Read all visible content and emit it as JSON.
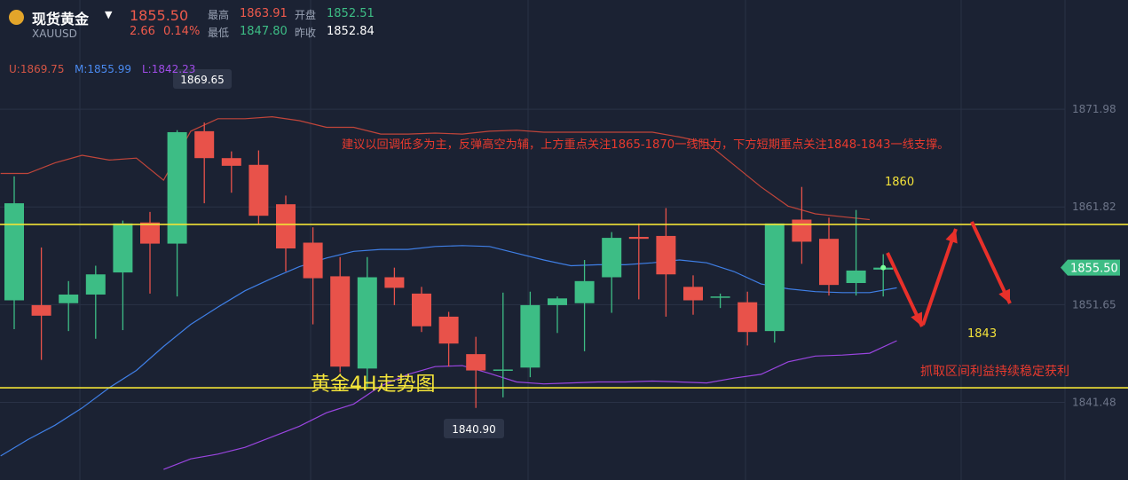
{
  "header": {
    "title": "现货黄金",
    "symbol": "XAUUSD",
    "price": "1855.50",
    "change": "2.66",
    "change_pct": "0.14%",
    "high_label": "最高",
    "high": "1863.91",
    "low_label": "最低",
    "low": "1847.80",
    "open_label": "开盘",
    "open": "1852.51",
    "prev_close_label": "昨收",
    "prev_close": "1852.84"
  },
  "indicator": {
    "upper": "U:1869.75",
    "middle": "M:1855.99",
    "lower": "L:1842.23"
  },
  "annotations": {
    "advice": "建议以回调低多为主，反弹高空为辅，上方重点关注1865-1870一线阻力，下方短期重点关注1848-1843一线支撑。",
    "chart_title": "黄金4H走势图",
    "profit_note": "抓取区间利益持续稳定获利",
    "level_high_label": "1860",
    "level_low_label": "1843",
    "max_label": "1869.65",
    "min_label": "1840.90",
    "current_price_tag": "1855.50"
  },
  "colors": {
    "background": "#1b2233",
    "up": "#3dbd85",
    "down": "#e8524a",
    "upper_band": "#c0453a",
    "middle_band": "#3f7fe6",
    "lower_band": "#9a45e0",
    "level_line": "#f1e336",
    "advice_text": "#e83a2e",
    "arrow": "#e8302a"
  },
  "chart_data": {
    "type": "candlestick",
    "symbol": "XAUUSD",
    "y_ticks": [
      1871.98,
      1861.82,
      1851.65,
      1841.48
    ],
    "ylim": [
      1837.3,
      1875.9
    ],
    "grid": true,
    "horizontal_levels": [
      1860,
      1843
    ],
    "candles": [
      {
        "o": 1852.1,
        "h": 1865.0,
        "l": 1849.1,
        "c": 1862.2
      },
      {
        "o": 1851.6,
        "h": 1857.6,
        "l": 1845.9,
        "c": 1850.5
      },
      {
        "o": 1851.8,
        "h": 1854.1,
        "l": 1848.9,
        "c": 1852.7
      },
      {
        "o": 1852.7,
        "h": 1855.7,
        "l": 1848.1,
        "c": 1854.8
      },
      {
        "o": 1855.0,
        "h": 1860.4,
        "l": 1849.0,
        "c": 1860.1
      },
      {
        "o": 1860.2,
        "h": 1861.3,
        "l": 1852.8,
        "c": 1858.0
      },
      {
        "o": 1858.0,
        "h": 1869.8,
        "l": 1852.5,
        "c": 1869.6
      },
      {
        "o": 1869.7,
        "h": 1870.6,
        "l": 1862.2,
        "c": 1866.9
      },
      {
        "o": 1866.9,
        "h": 1867.6,
        "l": 1863.3,
        "c": 1866.1
      },
      {
        "o": 1866.2,
        "h": 1867.7,
        "l": 1860.0,
        "c": 1860.9
      },
      {
        "o": 1862.1,
        "h": 1863.0,
        "l": 1855.1,
        "c": 1857.5
      },
      {
        "o": 1858.1,
        "h": 1859.7,
        "l": 1849.6,
        "c": 1854.4
      },
      {
        "o": 1854.6,
        "h": 1856.6,
        "l": 1844.6,
        "c": 1845.2
      },
      {
        "o": 1845.0,
        "h": 1856.6,
        "l": 1842.9,
        "c": 1854.5
      },
      {
        "o": 1854.5,
        "h": 1855.5,
        "l": 1851.6,
        "c": 1853.4
      },
      {
        "o": 1852.8,
        "h": 1853.5,
        "l": 1848.8,
        "c": 1849.4
      },
      {
        "o": 1850.4,
        "h": 1850.9,
        "l": 1845.2,
        "c": 1847.6
      },
      {
        "o": 1846.5,
        "h": 1848.3,
        "l": 1840.9,
        "c": 1844.8
      },
      {
        "o": 1844.8,
        "h": 1852.9,
        "l": 1842.0,
        "c": 1844.9
      },
      {
        "o": 1845.1,
        "h": 1853.0,
        "l": 1844.1,
        "c": 1851.6
      },
      {
        "o": 1851.6,
        "h": 1852.5,
        "l": 1848.7,
        "c": 1852.3
      },
      {
        "o": 1851.8,
        "h": 1856.3,
        "l": 1846.8,
        "c": 1854.1
      },
      {
        "o": 1854.5,
        "h": 1859.2,
        "l": 1850.8,
        "c": 1858.6
      },
      {
        "o": 1858.7,
        "h": 1860.1,
        "l": 1852.2,
        "c": 1858.5
      },
      {
        "o": 1858.8,
        "h": 1861.7,
        "l": 1850.4,
        "c": 1854.8
      },
      {
        "o": 1853.5,
        "h": 1854.7,
        "l": 1850.6,
        "c": 1852.1
      },
      {
        "o": 1852.4,
        "h": 1852.8,
        "l": 1851.3,
        "c": 1852.5
      },
      {
        "o": 1851.9,
        "h": 1853.0,
        "l": 1847.4,
        "c": 1848.8
      },
      {
        "o": 1848.9,
        "h": 1860.1,
        "l": 1847.7,
        "c": 1860.1
      },
      {
        "o": 1860.5,
        "h": 1863.9,
        "l": 1855.9,
        "c": 1858.2
      },
      {
        "o": 1858.5,
        "h": 1860.7,
        "l": 1852.6,
        "c": 1853.7
      },
      {
        "o": 1853.9,
        "h": 1861.5,
        "l": 1852.6,
        "c": 1855.2
      },
      {
        "o": 1855.3,
        "h": 1856.9,
        "l": 1852.5,
        "c": 1855.5
      }
    ],
    "bands": {
      "upper": [
        [
          -0.5,
          1865.3
        ],
        [
          0.5,
          1865.3
        ],
        [
          1.5,
          1866.4
        ],
        [
          2.5,
          1867.2
        ],
        [
          3.5,
          1866.7
        ],
        [
          4.5,
          1866.9
        ],
        [
          5.5,
          1864.6
        ],
        [
          6.5,
          1869.7
        ],
        [
          7.5,
          1871.0
        ],
        [
          8.5,
          1871.0
        ],
        [
          9.5,
          1871.2
        ],
        [
          10.5,
          1870.8
        ],
        [
          11.5,
          1870.1
        ],
        [
          12.5,
          1870.1
        ],
        [
          13.5,
          1869.4
        ],
        [
          14.5,
          1869.4
        ],
        [
          15.5,
          1869.5
        ],
        [
          16.5,
          1869.4
        ],
        [
          17.5,
          1869.7
        ],
        [
          18.5,
          1869.8
        ],
        [
          19.5,
          1869.6
        ],
        [
          20.5,
          1869.6
        ],
        [
          21.5,
          1869.6
        ],
        [
          22.5,
          1869.6
        ],
        [
          23.5,
          1869.6
        ],
        [
          24.5,
          1869.1
        ],
        [
          25.5,
          1868.5
        ],
        [
          26.5,
          1866.2
        ],
        [
          27.5,
          1863.9
        ],
        [
          28.5,
          1861.9
        ],
        [
          29.5,
          1861.1
        ],
        [
          30.5,
          1860.8
        ],
        [
          31.5,
          1860.5
        ]
      ],
      "middle": [
        [
          -0.5,
          1835.9
        ],
        [
          0.5,
          1837.6
        ],
        [
          1.5,
          1839.1
        ],
        [
          2.5,
          1840.9
        ],
        [
          3.5,
          1843.0
        ],
        [
          4.5,
          1844.8
        ],
        [
          5.5,
          1847.3
        ],
        [
          6.5,
          1849.6
        ],
        [
          7.5,
          1851.4
        ],
        [
          8.5,
          1853.1
        ],
        [
          9.5,
          1854.4
        ],
        [
          10.5,
          1855.6
        ],
        [
          11.5,
          1856.5
        ],
        [
          12.5,
          1857.2
        ],
        [
          13.5,
          1857.4
        ],
        [
          14.5,
          1857.4
        ],
        [
          15.5,
          1857.7
        ],
        [
          16.5,
          1857.8
        ],
        [
          17.5,
          1857.7
        ],
        [
          18.5,
          1857.0
        ],
        [
          19.5,
          1856.3
        ],
        [
          20.5,
          1855.7
        ],
        [
          21.5,
          1855.8
        ],
        [
          22.5,
          1855.8
        ],
        [
          23.5,
          1856.0
        ],
        [
          24.5,
          1856.3
        ],
        [
          25.5,
          1856.0
        ],
        [
          26.5,
          1855.1
        ],
        [
          27.5,
          1853.8
        ],
        [
          28.5,
          1853.3
        ],
        [
          29.5,
          1853.0
        ],
        [
          30.5,
          1852.9
        ],
        [
          31.5,
          1852.9
        ],
        [
          32.5,
          1853.4
        ]
      ],
      "lower": [
        [
          5.5,
          1834.5
        ],
        [
          6.5,
          1835.6
        ],
        [
          7.5,
          1836.1
        ],
        [
          8.5,
          1836.8
        ],
        [
          9.5,
          1837.9
        ],
        [
          10.5,
          1839.0
        ],
        [
          11.5,
          1840.4
        ],
        [
          12.5,
          1841.3
        ],
        [
          13.5,
          1843.2
        ],
        [
          14.5,
          1844.4
        ],
        [
          15.5,
          1845.2
        ],
        [
          16.5,
          1845.3
        ],
        [
          17.5,
          1844.5
        ],
        [
          18.5,
          1843.6
        ],
        [
          19.5,
          1843.4
        ],
        [
          20.5,
          1843.5
        ],
        [
          21.5,
          1843.6
        ],
        [
          22.5,
          1843.6
        ],
        [
          23.5,
          1843.7
        ],
        [
          24.5,
          1843.6
        ],
        [
          25.5,
          1843.5
        ],
        [
          26.5,
          1844.0
        ],
        [
          27.5,
          1844.4
        ],
        [
          28.5,
          1845.7
        ],
        [
          29.5,
          1846.3
        ],
        [
          30.5,
          1846.4
        ],
        [
          31.5,
          1846.6
        ],
        [
          32.5,
          1847.9
        ]
      ]
    }
  }
}
